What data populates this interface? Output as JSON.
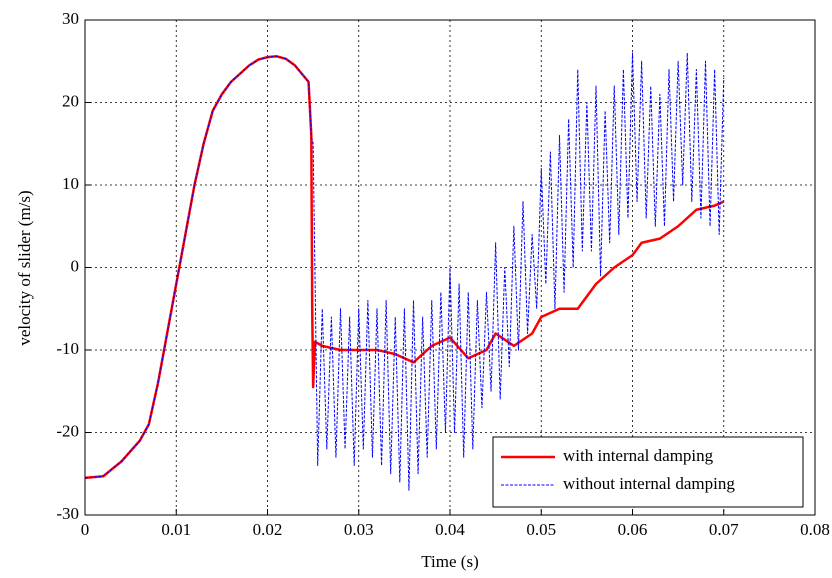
{
  "chart_data": {
    "type": "line",
    "xlabel": "Time (s)",
    "ylabel": "velocity of slider (m/s)",
    "xlim": [
      0,
      0.08
    ],
    "xticks": [
      0,
      0.01,
      0.02,
      0.03,
      0.04,
      0.05,
      0.06,
      0.07,
      0.08
    ],
    "ylim": [
      -30,
      30
    ],
    "yticks": [
      -30,
      -20,
      -10,
      0,
      10,
      20,
      30
    ],
    "grid": true,
    "legend": "lower right",
    "series": [
      {
        "name": "with internal damping",
        "color": "#ff0000",
        "linestyle": "solid",
        "x": [
          0,
          0.002,
          0.004,
          0.006,
          0.007,
          0.008,
          0.009,
          0.01,
          0.011,
          0.012,
          0.013,
          0.014,
          0.015,
          0.016,
          0.017,
          0.018,
          0.019,
          0.02,
          0.021,
          0.022,
          0.023,
          0.0245,
          0.0248,
          0.0249,
          0.025,
          0.0252,
          0.026,
          0.028,
          0.03,
          0.032,
          0.034,
          0.036,
          0.038,
          0.04,
          0.042,
          0.044,
          0.045,
          0.047,
          0.049,
          0.05,
          0.052,
          0.054,
          0.056,
          0.058,
          0.06,
          0.061,
          0.063,
          0.065,
          0.067,
          0.069,
          0.07
        ],
        "values": [
          -25.5,
          -25.3,
          -23.5,
          -21,
          -19,
          -14,
          -8,
          -2,
          4,
          10,
          15,
          19,
          21,
          22.5,
          23.5,
          24.5,
          25.2,
          25.5,
          25.6,
          25.3,
          24.5,
          22.5,
          16,
          -5,
          -14.5,
          -9,
          -9.5,
          -10,
          -10,
          -10,
          -10.5,
          -11.5,
          -9.5,
          -8.5,
          -11,
          -10,
          -8,
          -9.5,
          -8,
          -6,
          -5,
          -5,
          -2,
          0,
          1.5,
          3,
          3.5,
          5,
          7,
          7.5,
          8
        ]
      },
      {
        "name": "without internal damping",
        "color": "#0000ff",
        "linestyle": "dashed",
        "x": [
          0,
          0.002,
          0.004,
          0.006,
          0.007,
          0.008,
          0.009,
          0.01,
          0.011,
          0.012,
          0.013,
          0.014,
          0.015,
          0.016,
          0.017,
          0.018,
          0.019,
          0.02,
          0.021,
          0.022,
          0.023,
          0.0245,
          0.0248,
          0.025,
          0.0255,
          0.026,
          0.0265,
          0.027,
          0.0275,
          0.028,
          0.0285,
          0.029,
          0.0295,
          0.03,
          0.0305,
          0.031,
          0.0315,
          0.032,
          0.0325,
          0.033,
          0.0335,
          0.034,
          0.0345,
          0.035,
          0.0355,
          0.036,
          0.0365,
          0.037,
          0.0375,
          0.038,
          0.0385,
          0.039,
          0.0395,
          0.04,
          0.0405,
          0.041,
          0.0415,
          0.042,
          0.0425,
          0.043,
          0.0435,
          0.044,
          0.0445,
          0.045,
          0.0455,
          0.046,
          0.0465,
          0.047,
          0.0475,
          0.048,
          0.0485,
          0.049,
          0.0495,
          0.05,
          0.0505,
          0.051,
          0.0515,
          0.052,
          0.0525,
          0.053,
          0.0535,
          0.054,
          0.0545,
          0.055,
          0.0555,
          0.056,
          0.0565,
          0.057,
          0.0575,
          0.058,
          0.0585,
          0.059,
          0.0595,
          0.06,
          0.0605,
          0.061,
          0.0615,
          0.062,
          0.0625,
          0.063,
          0.0635,
          0.064,
          0.0645,
          0.065,
          0.0655,
          0.066,
          0.0665,
          0.067,
          0.0675,
          0.068,
          0.0685,
          0.069,
          0.0695,
          0.07
        ],
        "values": [
          -25.5,
          -25.3,
          -23.5,
          -21,
          -19,
          -14,
          -8,
          -2,
          4,
          10,
          15,
          19,
          21,
          22.5,
          23.5,
          24.5,
          25.2,
          25.5,
          25.6,
          25.3,
          24.5,
          22.5,
          16,
          15,
          -24,
          -5,
          -22,
          -6,
          -23,
          -5,
          -22,
          -6,
          -24,
          -5,
          -22,
          -4,
          -23,
          -5,
          -24,
          -4,
          -25,
          -6,
          -26,
          -5,
          -27,
          -4,
          -25,
          -6,
          -23,
          -4,
          -22,
          -3,
          -20,
          0,
          -20,
          -2,
          -23,
          -3,
          -22,
          -4,
          -17,
          -3,
          -15,
          3,
          -16,
          0,
          -12,
          5,
          -10,
          8,
          -8,
          4,
          -5,
          12,
          -2,
          14,
          -5,
          16,
          -3,
          18,
          0,
          24,
          2,
          20,
          2,
          22,
          -1,
          19,
          3,
          22,
          4,
          24,
          6,
          26,
          8,
          25,
          6,
          22,
          5,
          21,
          5,
          24,
          8,
          25,
          10,
          26,
          8,
          24,
          6,
          25,
          5,
          24,
          4,
          23
        ]
      }
    ]
  }
}
